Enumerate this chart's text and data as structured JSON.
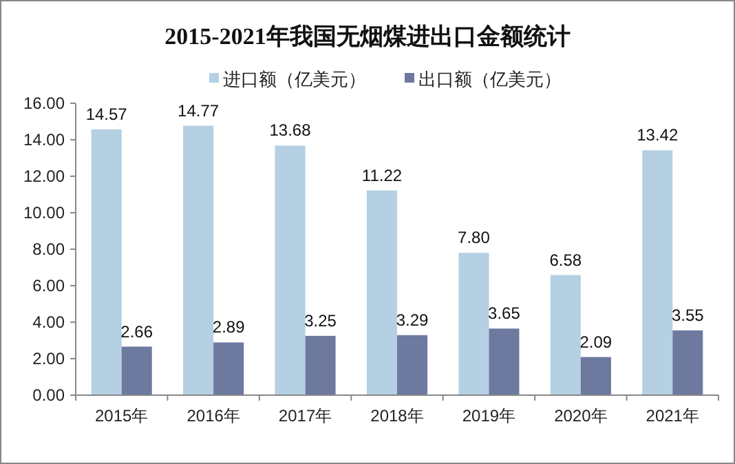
{
  "chart_data": {
    "type": "bar",
    "title": "2015-2021年我国无烟煤进出口金额统计",
    "categories": [
      "2015年",
      "2016年",
      "2017年",
      "2018年",
      "2019年",
      "2020年",
      "2021年"
    ],
    "series": [
      {
        "name": "进口额（亿美元）",
        "color": "#b4d0e2",
        "values": [
          14.57,
          14.77,
          13.68,
          11.22,
          7.8,
          6.58,
          13.42
        ],
        "value_labels": [
          "14.57",
          "14.77",
          "13.68",
          "11.22",
          "7.80",
          "6.58",
          "13.42"
        ]
      },
      {
        "name": "出口额（亿美元）",
        "color": "#6e79a0",
        "values": [
          2.66,
          2.89,
          3.25,
          3.29,
          3.65,
          2.09,
          3.55
        ],
        "value_labels": [
          "2.66",
          "2.89",
          "3.25",
          "3.29",
          "3.65",
          "2.09",
          "3.55"
        ]
      }
    ],
    "ylim": [
      0,
      16
    ],
    "yticks": [
      {
        "value": 0,
        "label": "0.00"
      },
      {
        "value": 2,
        "label": "2.00"
      },
      {
        "value": 4,
        "label": "4.00"
      },
      {
        "value": 6,
        "label": "6.00"
      },
      {
        "value": 8,
        "label": "8.00"
      },
      {
        "value": 10,
        "label": "10.00"
      },
      {
        "value": 12,
        "label": "12.00"
      },
      {
        "value": 14,
        "label": "14.00"
      },
      {
        "value": 16,
        "label": "16.00"
      }
    ],
    "legend": "top",
    "grid": false
  }
}
